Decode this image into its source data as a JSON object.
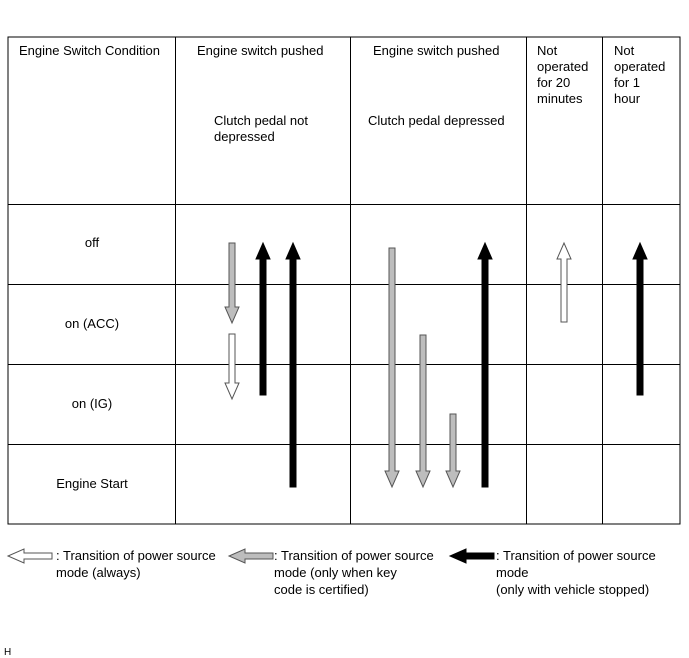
{
  "table": {
    "header": {
      "condition": "Engine Switch Condition",
      "col1": {
        "line1": "Engine switch pushed",
        "line2": "Clutch pedal not",
        "line3": "depressed"
      },
      "col2": {
        "line1": "Engine switch pushed",
        "line2": "Clutch pedal depressed"
      },
      "col3": {
        "line1": "Not",
        "line2": "operated",
        "line3": "for 20",
        "line4": "minutes"
      },
      "col4": {
        "line1": "Not",
        "line2": "operated",
        "line3": "for 1",
        "line4": "hour"
      }
    },
    "rows": {
      "off": "off",
      "acc": "on (ACC)",
      "ig": "on (IG)",
      "start": "Engine Start"
    }
  },
  "arrow_styles": {
    "always": {
      "fill": "#ffffff",
      "stroke": "#555555"
    },
    "key_certified": {
      "fill": "#bdbdbd",
      "stroke": "#555555"
    },
    "vehicle_stopped": {
      "fill": "#000000",
      "stroke": "#000000"
    }
  },
  "legend": {
    "always": {
      "line1": ": Transition of power source",
      "line2": "mode (always)"
    },
    "key_certified": {
      "line1": ": Transition of power source",
      "line2": "mode (only when key",
      "line3": "code is certified)"
    },
    "vehicle_stopped": {
      "line1": ": Transition of power source",
      "line2": "mode",
      "line3": "(only with vehicle stopped)"
    }
  },
  "footer_code": "H"
}
